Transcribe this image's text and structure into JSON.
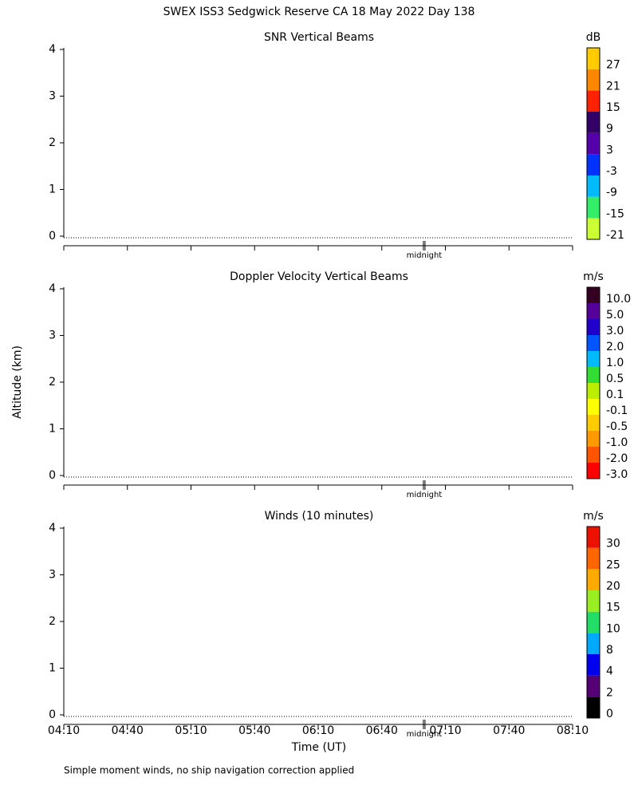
{
  "title": "SWEX ISS3 Sedgwick Reserve CA  18 May 2022 Day 138",
  "footnote": "Simple moment winds, no ship navigation correction applied",
  "chart_data": [
    {
      "type": "heatmap",
      "title": "SNR Vertical Beams",
      "xlim": [
        250,
        490
      ],
      "xticks": [
        250,
        280,
        310,
        340,
        370,
        400,
        430,
        460,
        490
      ],
      "ylim": [
        0,
        4
      ],
      "yticks": [
        0,
        1,
        2,
        3,
        4
      ],
      "annotation": {
        "x": 420,
        "text": "midnight"
      },
      "colorbar": {
        "label": "dB",
        "colors": [
          "#ccff33",
          "#33ee66",
          "#00bbff",
          "#0033ff",
          "#5500aa",
          "#330066",
          "#ff2200",
          "#ff8800",
          "#ffcc00"
        ],
        "ticks": [
          -21,
          -15,
          -9,
          -3,
          3,
          9,
          15,
          21,
          27
        ]
      }
    },
    {
      "type": "heatmap",
      "title": "Doppler Velocity Vertical Beams",
      "ylabel": "Altitude (km)",
      "xlim": [
        250,
        490
      ],
      "xticks": [
        250,
        280,
        310,
        340,
        370,
        400,
        430,
        460,
        490
      ],
      "ylim": [
        0,
        4
      ],
      "yticks": [
        0,
        1,
        2,
        3,
        4
      ],
      "annotation": {
        "x": 420,
        "text": "midnight"
      },
      "colorbar": {
        "label": "m/s",
        "colors": [
          "#ff0000",
          "#ff5500",
          "#ff9900",
          "#ffcc00",
          "#ffff00",
          "#bbee00",
          "#33dd33",
          "#00bbff",
          "#0055ff",
          "#2200cc",
          "#550099",
          "#330022"
        ],
        "ticks": [
          {
            "value": -3,
            "label": "-3.0"
          },
          {
            "value": -2,
            "label": "-2.0"
          },
          {
            "value": -1,
            "label": "-1.0"
          },
          -0.5,
          -0.1,
          0.1,
          0.5,
          {
            "value": 1,
            "label": "1.0"
          },
          {
            "value": 2,
            "label": "2.0"
          },
          {
            "value": 3,
            "label": "3.0"
          },
          {
            "value": 5,
            "label": "5.0"
          },
          {
            "value": 10,
            "label": "10.0"
          }
        ]
      }
    },
    {
      "type": "barbs",
      "title": "Winds (10 minutes)",
      "xlabel": "Time (UT)",
      "xlim": [
        250,
        490
      ],
      "xticks": [
        {
          "value": 250,
          "label": "04:10"
        },
        {
          "value": 280,
          "label": "04:40"
        },
        {
          "value": 310,
          "label": "05:10"
        },
        {
          "value": 340,
          "label": "05:40"
        },
        {
          "value": 370,
          "label": "06:10"
        },
        {
          "value": 400,
          "label": "06:40"
        },
        {
          "value": 430,
          "label": "07:10"
        },
        {
          "value": 460,
          "label": "07:40"
        },
        {
          "value": 490,
          "label": "08:10"
        }
      ],
      "ylim": [
        0,
        4
      ],
      "yticks": [
        0,
        1,
        2,
        3,
        4
      ],
      "annotation": {
        "x": 420,
        "text": "midnight"
      },
      "colorbar": {
        "label": "m/s",
        "colors": [
          "#000000",
          "#550077",
          "#0000ee",
          "#00aaff",
          "#22dd66",
          "#99ee22",
          "#ffaa00",
          "#ff6600",
          "#ee1100"
        ],
        "ticks": [
          0,
          2,
          4,
          8,
          10,
          15,
          20,
          25,
          30
        ]
      }
    }
  ]
}
